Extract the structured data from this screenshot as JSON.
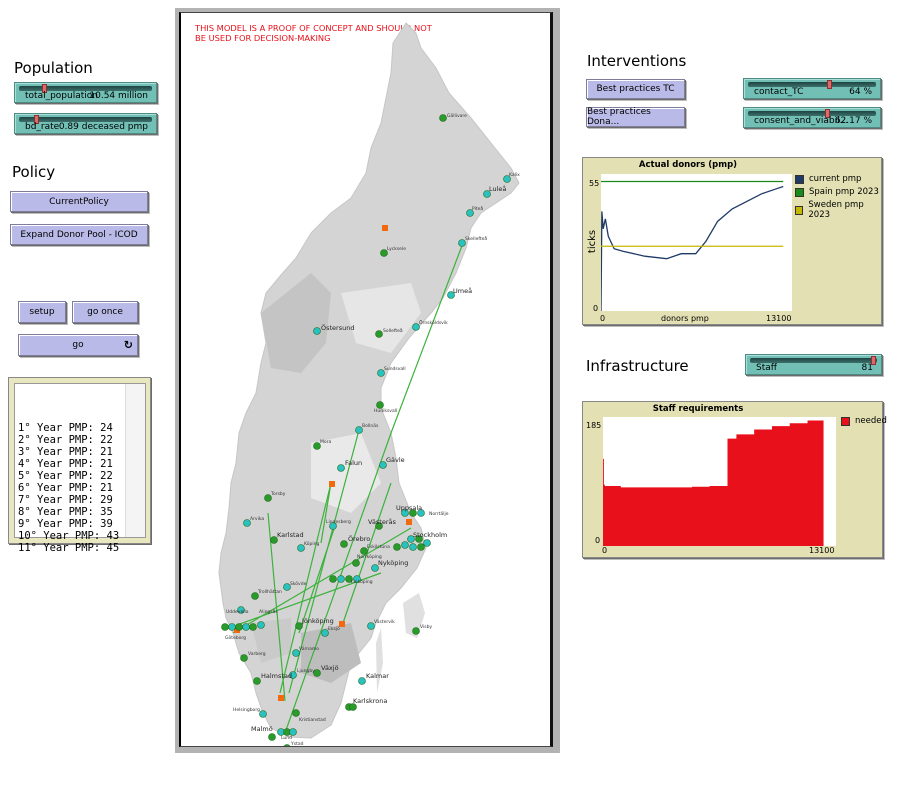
{
  "population": {
    "title": "Population",
    "sliders": [
      {
        "name": "total_population",
        "value": "10.54 million",
        "thumb_pct": 0.16
      },
      {
        "name": "bd_rate",
        "value": "0.89 deceased pmp",
        "thumb_pct": 0.1
      }
    ]
  },
  "policy": {
    "title": "Policy",
    "buttons": [
      "CurrentPolicy",
      "Expand Donor Pool - ICOD"
    ]
  },
  "controls": {
    "setup": "setup",
    "go_once": "go once",
    "go": "go",
    "forever_icon": "forever-loop-icon"
  },
  "output": {
    "lines": [
      "1° Year PMP: 24",
      "2° Year PMP: 22",
      "3° Year PMP: 21",
      "4° Year PMP: 21",
      "5° Year PMP: 22",
      "6° Year PMP: 21",
      "7° Year PMP: 29",
      "8° Year PMP: 35",
      "9° Year PMP: 39",
      "10° Year PMP: 43",
      "11° Year PMP: 45"
    ]
  },
  "world": {
    "warning": "THIS MODEL IS A PROOF OF CONCEPT AND SHOULD NOT BE USED FOR DECISION-MAKING",
    "cities": [
      "Gällivare",
      "Kalix",
      "Luleå",
      "Piteå",
      "Skellefteå",
      "Lycksele",
      "Umeå",
      "Östersund",
      "Sollefteå",
      "Örnsköldsvik",
      "Sundsvall",
      "Hudiksvall",
      "Bollnäs",
      "Mora",
      "Falun",
      "Gävle",
      "Torsby",
      "Arvika",
      "Karlstad",
      "Lindesberg",
      "Örebro",
      "Uppsala",
      "Västerås",
      "Köping",
      "Eskilstuna",
      "Norrtälje",
      "Stockholm",
      "Nyköping",
      "Norrköping",
      "Linköping",
      "Skövde",
      "Trollhättan",
      "Uddevalla",
      "Alingsås",
      "Göteborg",
      "Jönköping",
      "Eksjö",
      "Västervik",
      "Visby",
      "Varberg",
      "Värnamo",
      "Växjö",
      "Halmstad",
      "Ljungby",
      "Kalmar",
      "Karlskrona",
      "Helsingborg",
      "Kristianstad",
      "Malmö",
      "Lund",
      "Ystad"
    ]
  },
  "interventions": {
    "title": "Interventions",
    "buttons": [
      "Best practices TC",
      "Best practices Dona..."
    ],
    "sliders": [
      {
        "name": "contact_TC",
        "value": "64 %",
        "thumb_pct": 0.64
      },
      {
        "name": "consent_and_viabil...",
        "value": "62.17 %",
        "thumb_pct": 0.62
      }
    ]
  },
  "infrastructure": {
    "title": "Infrastructure",
    "slider": {
      "name": "Staff",
      "value": "81",
      "thumb_pct": 0.98
    }
  },
  "colors": {
    "current_pmp": "#1f3a66",
    "spain_pmp": "#1a8a1a",
    "sweden_pmp": "#c4b800",
    "needed": "#e8101a",
    "button": "#babae8",
    "slider": "#72bfb6",
    "plot_bg": "#e3e1b3",
    "warning": "#e8101a"
  },
  "chart_data": [
    {
      "type": "line",
      "title": "Actual donors (pmp)",
      "xlabel": "donors pmp",
      "ylabel": "ticks",
      "xlim": [
        0,
        13100
      ],
      "ylim": [
        0,
        55
      ],
      "x_ticks": [
        "0",
        "13100"
      ],
      "y_ticks": [
        "0",
        "55"
      ],
      "legend_position": "right",
      "series": [
        {
          "name": "current pmp",
          "color": "#1f3a66",
          "x": [
            0,
            60,
            150,
            300,
            500,
            900,
            1500,
            3000,
            4500,
            5500,
            6500,
            7200,
            8000,
            9000,
            10000,
            11000,
            12000,
            12500
          ],
          "y": [
            0,
            40,
            33,
            37,
            30,
            25,
            24,
            22,
            21,
            23,
            23,
            28,
            36,
            41,
            44,
            47,
            49,
            50
          ]
        },
        {
          "name": "Spain pmp 2023",
          "color": "#1a8a1a",
          "x": [
            0,
            12500
          ],
          "y": [
            52,
            52
          ]
        },
        {
          "name": "Sweden pmp 2023",
          "color": "#c4b800",
          "x": [
            0,
            12500
          ],
          "y": [
            26,
            26
          ]
        }
      ],
      "grid": false
    },
    {
      "type": "bar",
      "title": "Staff requirements",
      "xlabel": "",
      "ylabel": "",
      "xlim": [
        0,
        13100
      ],
      "ylim": [
        0,
        185
      ],
      "x_ticks": [
        "0",
        "13100"
      ],
      "y_ticks": [
        "0",
        "185"
      ],
      "legend_position": "right",
      "series": [
        {
          "name": "needed",
          "color": "#e8101a",
          "x": [
            0,
            50,
            100,
            500,
            1000,
            2000,
            3000,
            4000,
            5000,
            6000,
            6900,
            7000,
            7500,
            8500,
            9500,
            10500,
            11500,
            12400
          ],
          "y": [
            125,
            88,
            86,
            86,
            84,
            84,
            84,
            84,
            85,
            86,
            86,
            154,
            160,
            167,
            172,
            176,
            180,
            183
          ]
        }
      ],
      "grid": false
    }
  ]
}
